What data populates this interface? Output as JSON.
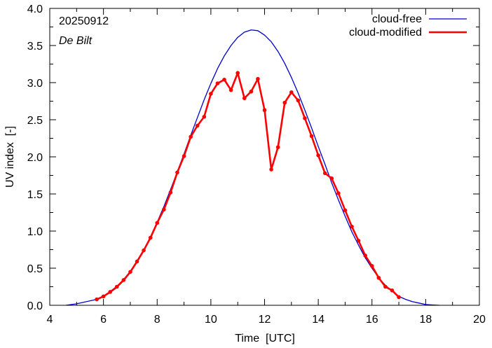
{
  "chart_data": {
    "type": "line",
    "date": "20250912",
    "location": "De Bilt",
    "xlabel": "Time  [UTC]",
    "ylabel": "UV index  [-]",
    "xlim": [
      4,
      20
    ],
    "ylim": [
      0,
      4
    ],
    "x_ticks": [
      4,
      6,
      8,
      10,
      12,
      14,
      16,
      18,
      20
    ],
    "y_ticks": [
      0.0,
      0.5,
      1.0,
      1.5,
      2.0,
      2.5,
      3.0,
      3.5,
      4.0
    ],
    "x_tick_labels": [
      "4",
      "6",
      "8",
      "10",
      "12",
      "14",
      "16",
      "18",
      "20"
    ],
    "y_tick_labels": [
      "0.0",
      "0.5",
      "1.0",
      "1.5",
      "2.0",
      "2.5",
      "3.0",
      "3.5",
      "4.0"
    ],
    "legend_position": "top-right",
    "series": [
      {
        "name": "cloud-free",
        "color": "#0000cc",
        "kind": "smooth",
        "x": [
          4.6,
          5.0,
          5.25,
          5.5,
          5.75,
          6.0,
          6.25,
          6.5,
          6.75,
          7.0,
          7.25,
          7.5,
          7.75,
          8.0,
          8.25,
          8.5,
          8.75,
          9.0,
          9.25,
          9.5,
          9.75,
          10.0,
          10.25,
          10.5,
          10.75,
          11.0,
          11.25,
          11.5,
          11.75,
          12.0,
          12.25,
          12.5,
          12.75,
          13.0,
          13.25,
          13.5,
          13.75,
          14.0,
          14.25,
          14.5,
          14.75,
          15.0,
          15.25,
          15.5,
          15.75,
          16.0,
          16.25,
          16.5,
          16.75,
          17.0,
          17.25,
          17.5,
          17.75,
          18.0,
          18.25,
          18.5
        ],
        "y": [
          0.0,
          0.02,
          0.04,
          0.06,
          0.08,
          0.12,
          0.17,
          0.24,
          0.33,
          0.44,
          0.58,
          0.74,
          0.92,
          1.12,
          1.33,
          1.56,
          1.8,
          2.04,
          2.29,
          2.53,
          2.77,
          2.99,
          3.19,
          3.36,
          3.5,
          3.61,
          3.68,
          3.71,
          3.7,
          3.64,
          3.55,
          3.42,
          3.26,
          3.07,
          2.86,
          2.63,
          2.39,
          2.14,
          1.9,
          1.65,
          1.42,
          1.2,
          0.99,
          0.81,
          0.64,
          0.5,
          0.37,
          0.27,
          0.19,
          0.12,
          0.08,
          0.05,
          0.03,
          0.01,
          0.005,
          0.0
        ]
      },
      {
        "name": "cloud-modified",
        "color": "#ff0000",
        "kind": "markers",
        "x": [
          5.75,
          6.0,
          6.25,
          6.5,
          6.75,
          7.0,
          7.25,
          7.5,
          7.75,
          8.0,
          8.25,
          8.5,
          8.75,
          9.0,
          9.25,
          9.5,
          9.75,
          10.0,
          10.25,
          10.5,
          10.75,
          11.0,
          11.25,
          11.5,
          11.75,
          12.0,
          12.25,
          12.5,
          12.75,
          13.0,
          13.25,
          13.5,
          13.75,
          14.0,
          14.25,
          14.5,
          14.75,
          15.0,
          15.25,
          15.5,
          15.75,
          16.0,
          16.25,
          16.5,
          16.75,
          17.0
        ],
        "y": [
          0.08,
          0.12,
          0.18,
          0.25,
          0.34,
          0.45,
          0.59,
          0.74,
          0.91,
          1.11,
          1.29,
          1.52,
          1.79,
          2.01,
          2.27,
          2.42,
          2.54,
          2.85,
          2.99,
          3.04,
          2.9,
          3.13,
          2.79,
          2.88,
          3.05,
          2.63,
          1.83,
          2.13,
          2.73,
          2.87,
          2.76,
          2.52,
          2.28,
          2.02,
          1.78,
          1.71,
          1.51,
          1.28,
          1.06,
          0.87,
          0.67,
          0.53,
          0.37,
          0.25,
          0.2,
          0.11
        ]
      }
    ]
  }
}
